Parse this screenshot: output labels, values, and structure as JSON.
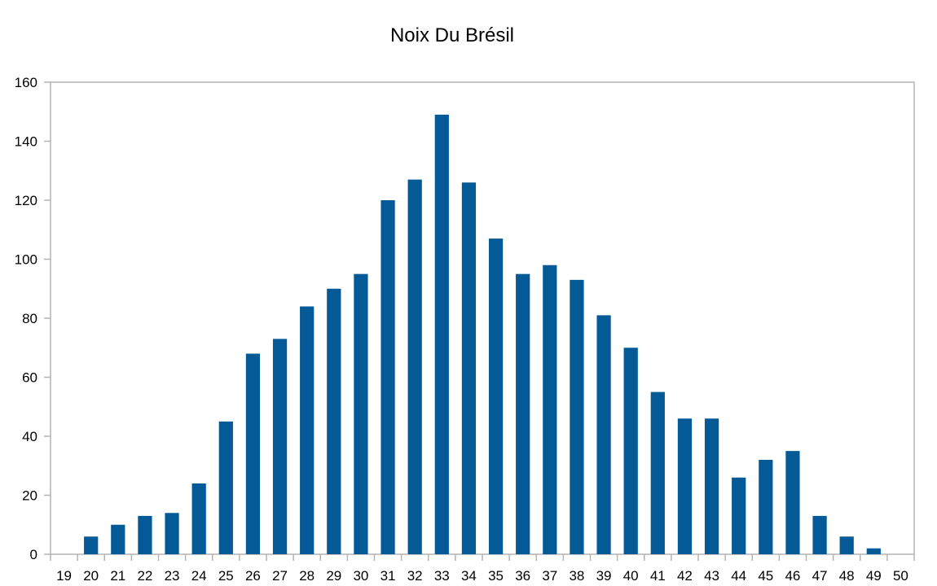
{
  "chart_data": {
    "type": "bar",
    "title": "Noix Du Brésil",
    "xlabel": "",
    "ylabel": "",
    "x_ticks": [
      "19",
      "20",
      "21",
      "22",
      "23",
      "24",
      "25",
      "26",
      "27",
      "28",
      "29",
      "30",
      "31",
      "32",
      "33",
      "34",
      "35",
      "36",
      "37",
      "38",
      "39",
      "40",
      "41",
      "42",
      "43",
      "44",
      "45",
      "46",
      "47",
      "48",
      "49",
      "50"
    ],
    "categories": [
      "20",
      "21",
      "22",
      "23",
      "24",
      "25",
      "26",
      "27",
      "28",
      "29",
      "30",
      "31",
      "32",
      "33",
      "34",
      "35",
      "36",
      "37",
      "38",
      "39",
      "40",
      "41",
      "42",
      "43",
      "44",
      "45",
      "46",
      "47",
      "48",
      "49"
    ],
    "values": [
      6,
      10,
      13,
      14,
      24,
      45,
      68,
      73,
      84,
      90,
      95,
      120,
      127,
      149,
      126,
      107,
      95,
      98,
      93,
      81,
      70,
      55,
      46,
      46,
      26,
      32,
      35,
      13,
      6,
      2
    ],
    "ylim": [
      0,
      160
    ],
    "y_ticks": [
      0,
      20,
      40,
      60,
      80,
      100,
      120,
      140,
      160
    ],
    "grid": false,
    "legend": "none",
    "bar_color": "#045a97",
    "axis_color": "#b3b3b3"
  }
}
